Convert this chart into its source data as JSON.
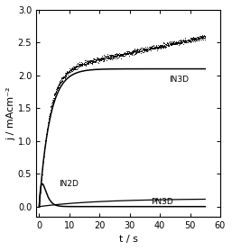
{
  "title": "",
  "xlabel": "t / s",
  "ylabel": "j / mAcm⁻²",
  "xlim": [
    -1,
    60
  ],
  "ylim": [
    -0.15,
    3.0
  ],
  "yticks": [
    0.0,
    0.5,
    1.0,
    1.5,
    2.0,
    2.5,
    3.0
  ],
  "xticks": [
    0,
    10,
    20,
    30,
    40,
    50,
    60
  ],
  "labels": {
    "IN3D": [
      43,
      1.93
    ],
    "IN2D": [
      6.5,
      0.35
    ],
    "PN3D": [
      37,
      0.075
    ]
  },
  "figsize": [
    2.57,
    2.78
  ],
  "dpi": 100,
  "in3d_fit_plateau": 2.1,
  "in3d_fit_tau": 3.5,
  "in3d_exp_plateau": 2.05,
  "in3d_exp_tau": 3.2,
  "in3d_exp_slope": 0.0095,
  "in2d_scale": 0.95,
  "in2d_tau": 1.0,
  "pn3d_plateau": 0.12,
  "pn3d_tau": 20
}
